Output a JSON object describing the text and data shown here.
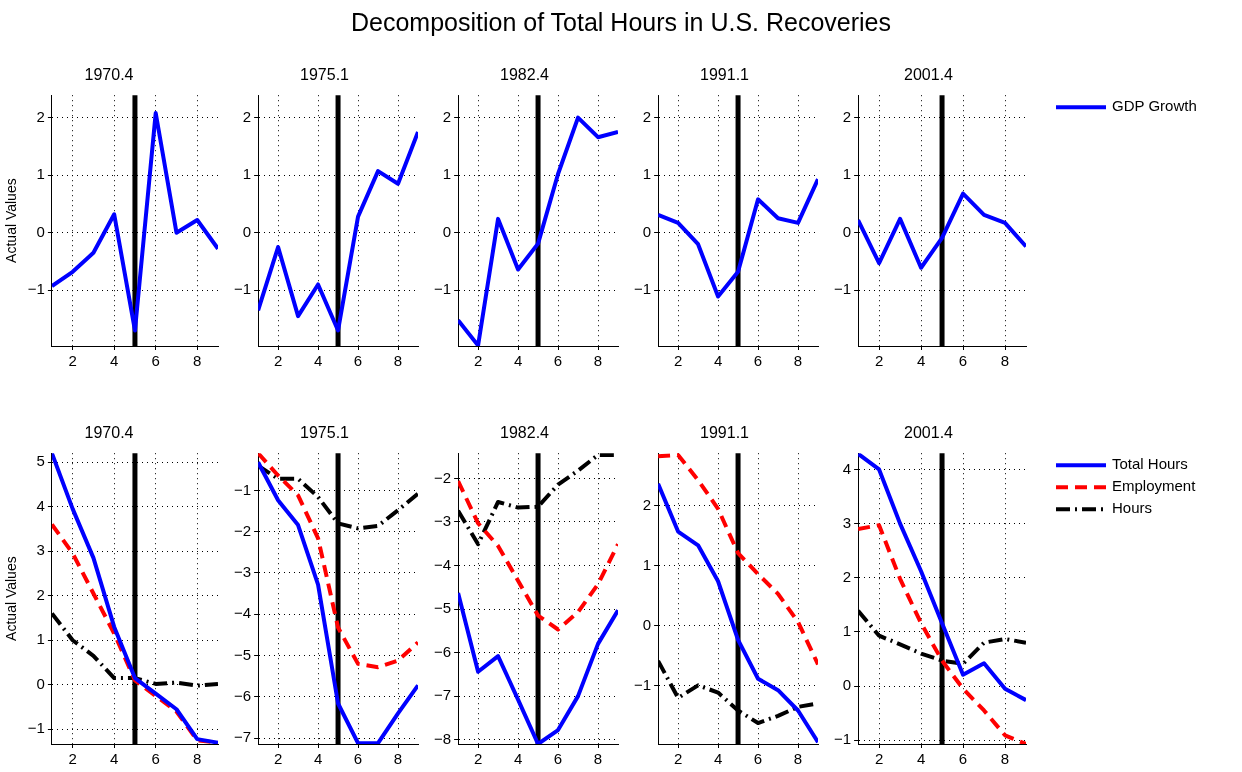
{
  "chart_data": [
    {
      "type": "line",
      "title": "1970.4",
      "ylabel": "Actual Values",
      "annotations": [
        "Decomposition of Total Hours in U.S. Recoveries"
      ],
      "x": [
        1,
        2,
        3,
        4,
        5,
        6,
        7,
        8,
        9
      ],
      "xlim": [
        1,
        9
      ],
      "xticks": [
        2,
        4,
        6,
        8
      ],
      "ylim": [
        -1.97,
        2.39
      ],
      "yticks": [
        -1,
        0,
        1,
        2
      ],
      "grid": true,
      "ref_lines": [
        {
          "axis": "x",
          "value": 5,
          "color": "#000000"
        }
      ],
      "series": [
        {
          "color": "#0000ff",
          "line_style": "solid",
          "values": [
            -0.93,
            -0.68,
            -0.35,
            0.32,
            -1.7,
            2.08,
            0.0,
            0.22,
            -0.28
          ]
        }
      ]
    },
    {
      "type": "line",
      "title": "1975.1",
      "x": [
        1,
        2,
        3,
        4,
        5,
        6,
        7,
        8,
        9
      ],
      "xlim": [
        1,
        9
      ],
      "xticks": [
        2,
        4,
        6,
        8
      ],
      "ylim": [
        -1.97,
        2.39
      ],
      "yticks": [
        -1,
        0,
        1,
        2
      ],
      "grid": true,
      "ref_lines": [
        {
          "axis": "x",
          "value": 5,
          "color": "#000000"
        }
      ],
      "series": [
        {
          "color": "#0000ff",
          "line_style": "solid",
          "values": [
            -1.35,
            -0.25,
            -1.45,
            -0.9,
            -1.7,
            0.28,
            1.07,
            0.85,
            1.75
          ]
        }
      ]
    },
    {
      "type": "line",
      "title": "1982.4",
      "x": [
        1,
        2,
        3,
        4,
        5,
        6,
        7,
        8,
        9
      ],
      "xlim": [
        1,
        9
      ],
      "xticks": [
        2,
        4,
        6,
        8
      ],
      "ylim": [
        -1.97,
        2.39
      ],
      "yticks": [
        -1,
        0,
        1,
        2
      ],
      "grid": true,
      "ref_lines": [
        {
          "axis": "x",
          "value": 5,
          "color": "#000000"
        }
      ],
      "series": [
        {
          "color": "#0000ff",
          "line_style": "solid",
          "values": [
            -1.52,
            -1.96,
            0.24,
            -0.64,
            -0.19,
            1.02,
            2.0,
            1.66,
            1.75
          ]
        }
      ]
    },
    {
      "type": "line",
      "title": "1991.1",
      "x": [
        1,
        2,
        3,
        4,
        5,
        6,
        7,
        8,
        9
      ],
      "xlim": [
        1,
        9
      ],
      "xticks": [
        2,
        4,
        6,
        8
      ],
      "ylim": [
        -1.97,
        2.39
      ],
      "yticks": [
        -1,
        0,
        1,
        2
      ],
      "grid": true,
      "ref_lines": [
        {
          "axis": "x",
          "value": 5,
          "color": "#000000"
        }
      ],
      "series": [
        {
          "color": "#0000ff",
          "line_style": "solid",
          "values": [
            0.31,
            0.17,
            -0.2,
            -1.11,
            -0.68,
            0.58,
            0.25,
            0.17,
            0.93
          ]
        }
      ]
    },
    {
      "type": "line",
      "title": "2001.4",
      "x": [
        1,
        2,
        3,
        4,
        5,
        6,
        7,
        8,
        9
      ],
      "xlim": [
        1,
        9
      ],
      "xticks": [
        2,
        4,
        6,
        8
      ],
      "ylim": [
        -1.97,
        2.39
      ],
      "yticks": [
        -1,
        0,
        1,
        2
      ],
      "grid": true,
      "legend": "right",
      "ref_lines": [
        {
          "axis": "x",
          "value": 5,
          "color": "#000000"
        }
      ],
      "series": [
        {
          "name": "GDP Growth",
          "color": "#0000ff",
          "line_style": "solid",
          "values": [
            0.22,
            -0.53,
            0.24,
            -0.61,
            -0.09,
            0.68,
            0.31,
            0.17,
            -0.24
          ]
        }
      ]
    },
    {
      "type": "line",
      "title": "1970.4",
      "ylabel": "Actual Values",
      "x": [
        1,
        2,
        3,
        4,
        5,
        6,
        7,
        8,
        9
      ],
      "xlim": [
        1,
        9
      ],
      "xticks": [
        2,
        4,
        6,
        8
      ],
      "ylim": [
        -1.33,
        5.2
      ],
      "yticks": [
        -1,
        0,
        1,
        2,
        3,
        4,
        5
      ],
      "grid": true,
      "ref_lines": [
        {
          "axis": "x",
          "value": 5,
          "color": "#000000"
        }
      ],
      "series": [
        {
          "color": "#0000ff",
          "line_style": "solid",
          "values": [
            5.2,
            3.95,
            2.85,
            1.3,
            0.15,
            -0.2,
            -0.55,
            -1.22,
            -1.3
          ]
        },
        {
          "color": "#ff0000",
          "line_style": "dashed",
          "values": [
            3.6,
            2.95,
            2.05,
            1.15,
            0.1,
            -0.25,
            -0.6,
            -1.25,
            -1.3
          ]
        },
        {
          "color": "#000000",
          "line_style": "dotted",
          "values": [
            1.6,
            1.0,
            0.65,
            0.15,
            0.15,
            0.02,
            0.05,
            -0.02,
            0.02
          ]
        }
      ]
    },
    {
      "type": "line",
      "title": "1975.1",
      "x": [
        1,
        2,
        3,
        4,
        5,
        6,
        7,
        8,
        9
      ],
      "xlim": [
        1,
        9
      ],
      "xticks": [
        2,
        4,
        6,
        8
      ],
      "ylim": [
        -7.14,
        -0.1
      ],
      "yticks": [
        -7,
        -6,
        -5,
        -4,
        -3,
        -2,
        -1
      ],
      "grid": true,
      "ref_lines": [
        {
          "axis": "x",
          "value": 5,
          "color": "#000000"
        }
      ],
      "series": [
        {
          "color": "#0000ff",
          "line_style": "solid",
          "values": [
            -0.32,
            -1.24,
            -1.84,
            -3.28,
            -6.16,
            -7.12,
            -7.12,
            -6.4,
            -5.72
          ]
        },
        {
          "color": "#ff0000",
          "line_style": "dashed",
          "values": [
            -0.1,
            -0.64,
            -1.12,
            -2.16,
            -4.32,
            -5.2,
            -5.28,
            -5.12,
            -4.68
          ]
        },
        {
          "color": "#000000",
          "line_style": "dotted",
          "values": [
            -0.4,
            -0.72,
            -0.72,
            -1.16,
            -1.8,
            -1.92,
            -1.86,
            -1.48,
            -1.08
          ]
        }
      ]
    },
    {
      "type": "line",
      "title": "1982.4",
      "x": [
        1,
        2,
        3,
        4,
        5,
        6,
        7,
        8,
        9
      ],
      "xlim": [
        1,
        9
      ],
      "xticks": [
        2,
        4,
        6,
        8
      ],
      "ylim": [
        -8.1,
        -1.42
      ],
      "yticks": [
        -8,
        -7,
        -6,
        -5,
        -4,
        -3,
        -2
      ],
      "grid": true,
      "ref_lines": [
        {
          "axis": "x",
          "value": 5,
          "color": "#000000"
        }
      ],
      "series": [
        {
          "color": "#0000ff",
          "line_style": "solid",
          "values": [
            -4.63,
            -6.44,
            -6.08,
            -7.08,
            -8.1,
            -7.78,
            -7.0,
            -5.8,
            -5.03
          ]
        },
        {
          "color": "#ff0000",
          "line_style": "dashed",
          "values": [
            -2.06,
            -3.03,
            -3.55,
            -4.35,
            -5.15,
            -5.47,
            -5.07,
            -4.43,
            -3.51
          ]
        },
        {
          "color": "#000000",
          "line_style": "dotted",
          "values": [
            -2.74,
            -3.51,
            -2.54,
            -2.67,
            -2.65,
            -2.14,
            -1.82,
            -1.46,
            -1.46
          ]
        }
      ]
    },
    {
      "type": "line",
      "title": "1991.1",
      "x": [
        1,
        2,
        3,
        4,
        5,
        6,
        7,
        8,
        9
      ],
      "xlim": [
        1,
        9
      ],
      "xticks": [
        2,
        4,
        6,
        8
      ],
      "ylim": [
        -1.98,
        2.88
      ],
      "yticks": [
        -1,
        0,
        1,
        2
      ],
      "grid": true,
      "ref_lines": [
        {
          "axis": "x",
          "value": 5,
          "color": "#000000"
        }
      ],
      "series": [
        {
          "color": "#0000ff",
          "line_style": "solid",
          "values": [
            2.37,
            1.57,
            1.34,
            0.74,
            -0.24,
            -0.89,
            -1.08,
            -1.42,
            -1.95
          ]
        },
        {
          "color": "#ff0000",
          "line_style": "dashed",
          "values": [
            2.83,
            2.85,
            2.43,
            1.95,
            1.21,
            0.86,
            0.53,
            0.06,
            -0.65
          ]
        },
        {
          "color": "#000000",
          "line_style": "dotted",
          "values": [
            -0.59,
            -1.21,
            -1.0,
            -1.12,
            -1.42,
            -1.63,
            -1.51,
            -1.36,
            -1.3
          ]
        }
      ]
    },
    {
      "type": "line",
      "title": "2001.4",
      "x": [
        1,
        2,
        3,
        4,
        5,
        6,
        7,
        8,
        9
      ],
      "xlim": [
        1,
        9
      ],
      "xticks": [
        2,
        4,
        6,
        8
      ],
      "ylim": [
        -1.07,
        4.3
      ],
      "yticks": [
        -1,
        0,
        1,
        2,
        3,
        4
      ],
      "grid": true,
      "legend": "right",
      "ref_lines": [
        {
          "axis": "x",
          "value": 5,
          "color": "#000000"
        }
      ],
      "series": [
        {
          "name": "Total Hours",
          "color": "#0000ff",
          "line_style": "solid",
          "values": [
            4.29,
            4.0,
            3.0,
            2.12,
            1.16,
            0.21,
            0.42,
            -0.05,
            -0.26
          ]
        },
        {
          "name": "Employment",
          "color": "#ff0000",
          "line_style": "dashed",
          "values": [
            2.9,
            2.97,
            1.98,
            1.16,
            0.47,
            -0.05,
            -0.45,
            -0.91,
            -1.07
          ]
        },
        {
          "name": "Hours",
          "color": "#000000",
          "line_style": "dotted",
          "values": [
            1.39,
            0.93,
            0.77,
            0.6,
            0.47,
            0.41,
            0.8,
            0.87,
            0.8
          ]
        }
      ]
    }
  ]
}
